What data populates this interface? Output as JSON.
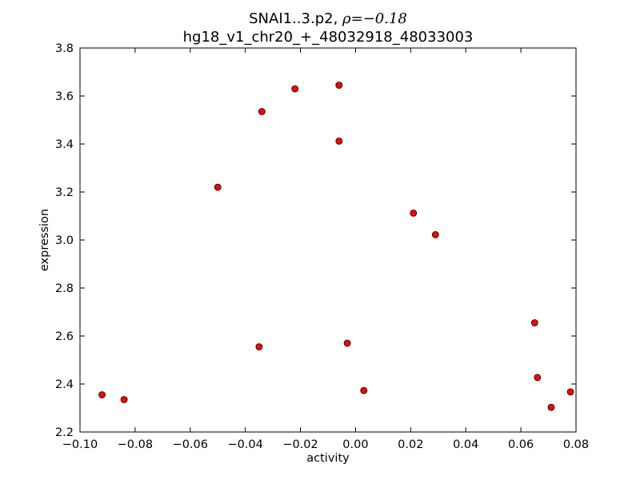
{
  "chart_data": {
    "type": "scatter",
    "title_line1_prefix": "SNAI1..3.p2, ",
    "title_line1_math": "ρ=−0.18",
    "title_line2": "hg18_v1_chr20_+_48032918_48033003",
    "xlabel": "activity",
    "ylabel": "expression",
    "xlim": [
      -0.1,
      0.08
    ],
    "ylim": [
      2.2,
      3.8
    ],
    "xticks": [
      -0.1,
      -0.08,
      -0.06,
      -0.04,
      -0.02,
      0.0,
      0.02,
      0.04,
      0.06,
      0.08
    ],
    "xtick_labels": [
      "−0.10",
      "−0.08",
      "−0.06",
      "−0.04",
      "−0.02",
      "0.00",
      "0.02",
      "0.04",
      "0.06",
      "0.08"
    ],
    "yticks": [
      2.2,
      2.4,
      2.6,
      2.8,
      3.0,
      3.2,
      3.4,
      3.6,
      3.8
    ],
    "ytick_labels": [
      "2.2",
      "2.4",
      "2.6",
      "2.8",
      "3.0",
      "3.2",
      "3.4",
      "3.6",
      "3.8"
    ],
    "grid": false,
    "marker_color": "#ff0000",
    "marker_edge_color": "#000000",
    "points": [
      {
        "x": -0.092,
        "y": 2.355
      },
      {
        "x": -0.084,
        "y": 2.335
      },
      {
        "x": -0.05,
        "y": 3.22
      },
      {
        "x": -0.034,
        "y": 3.535
      },
      {
        "x": -0.035,
        "y": 2.555
      },
      {
        "x": -0.022,
        "y": 3.63
      },
      {
        "x": -0.006,
        "y": 3.645
      },
      {
        "x": -0.006,
        "y": 3.412
      },
      {
        "x": -0.003,
        "y": 2.57
      },
      {
        "x": 0.003,
        "y": 2.373
      },
      {
        "x": 0.021,
        "y": 3.112
      },
      {
        "x": 0.029,
        "y": 3.022
      },
      {
        "x": 0.065,
        "y": 2.655
      },
      {
        "x": 0.066,
        "y": 2.427
      },
      {
        "x": 0.071,
        "y": 2.303
      },
      {
        "x": 0.078,
        "y": 2.367
      }
    ]
  }
}
